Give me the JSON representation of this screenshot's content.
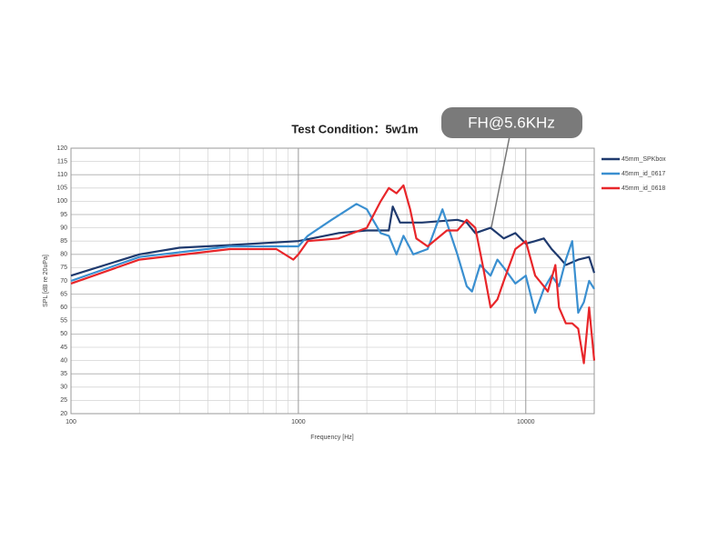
{
  "chart_data": {
    "type": "line",
    "title": "Test Condition：5w1m",
    "annotation": "FH@5.6KHz",
    "x_label": "Frequency [Hz]",
    "y_label": "SPL [dB re 20uPa]",
    "xscale": "log",
    "xlim": [
      100,
      20000
    ],
    "ylim": [
      20,
      120
    ],
    "xticks": [
      100,
      1000,
      10000
    ],
    "xminorticks": [
      200,
      300,
      400,
      500,
      600,
      700,
      800,
      900,
      2000,
      3000,
      4000,
      5000,
      6000,
      7000,
      8000,
      9000
    ],
    "yticks": [
      20,
      25,
      30,
      35,
      40,
      45,
      50,
      55,
      60,
      65,
      70,
      75,
      80,
      85,
      90,
      95,
      100,
      105,
      110,
      115,
      120
    ],
    "grid": true,
    "legend": "upper right",
    "series": [
      {
        "name": "45mm_SPKbox",
        "color": "#1f3a6e",
        "x": [
          100,
          200,
          300,
          500,
          1000,
          1500,
          2000,
          2500,
          2600,
          2800,
          3500,
          5000,
          5500,
          6000,
          7000,
          8000,
          9000,
          10000,
          11000,
          12000,
          13000,
          14000,
          15000,
          17000,
          19000,
          20000
        ],
        "values": [
          72,
          80,
          82.5,
          83.5,
          85,
          88,
          89,
          89,
          98,
          92,
          92,
          93,
          92,
          88,
          90,
          86,
          88,
          84,
          85,
          86,
          82,
          79,
          76,
          78,
          79,
          73
        ]
      },
      {
        "name": "45mm_id_0617",
        "color": "#3a8fd0",
        "x": [
          100,
          200,
          500,
          900,
          1000,
          1100,
          1400,
          1800,
          2000,
          2300,
          2500,
          2700,
          2900,
          3200,
          3700,
          4300,
          4700,
          5000,
          5500,
          5800,
          6300,
          7000,
          7500,
          8000,
          9000,
          10000,
          11000,
          12000,
          13000,
          14000,
          15000,
          16000,
          17000,
          18000,
          19000,
          20000
        ],
        "values": [
          70,
          79,
          83,
          83,
          83,
          87,
          93,
          99,
          97,
          88,
          87,
          80,
          87,
          80,
          82,
          97,
          87,
          80,
          68,
          66,
          76,
          72,
          78,
          75,
          69,
          72,
          58,
          67,
          72,
          68,
          78,
          85,
          58,
          62,
          70,
          67
        ]
      },
      {
        "name": "45mm_id_0618",
        "color": "#e8262a",
        "x": [
          100,
          200,
          500,
          800,
          950,
          1000,
          1100,
          1500,
          2000,
          2300,
          2500,
          2700,
          2900,
          3100,
          3300,
          3700,
          4500,
          5000,
          5500,
          6000,
          6500,
          7000,
          7500,
          8000,
          9000,
          10000,
          11000,
          12000,
          12500,
          13500,
          14000,
          15000,
          16000,
          17000,
          18000,
          19000,
          20000
        ],
        "values": [
          69,
          78,
          82,
          82,
          78,
          80,
          85,
          86,
          90,
          100,
          105,
          103,
          106,
          97,
          86,
          83,
          89,
          89,
          93,
          90,
          75,
          60,
          63,
          70,
          82,
          85,
          72,
          68,
          66,
          76,
          60,
          54,
          54,
          52,
          39,
          60,
          40
        ]
      }
    ]
  }
}
